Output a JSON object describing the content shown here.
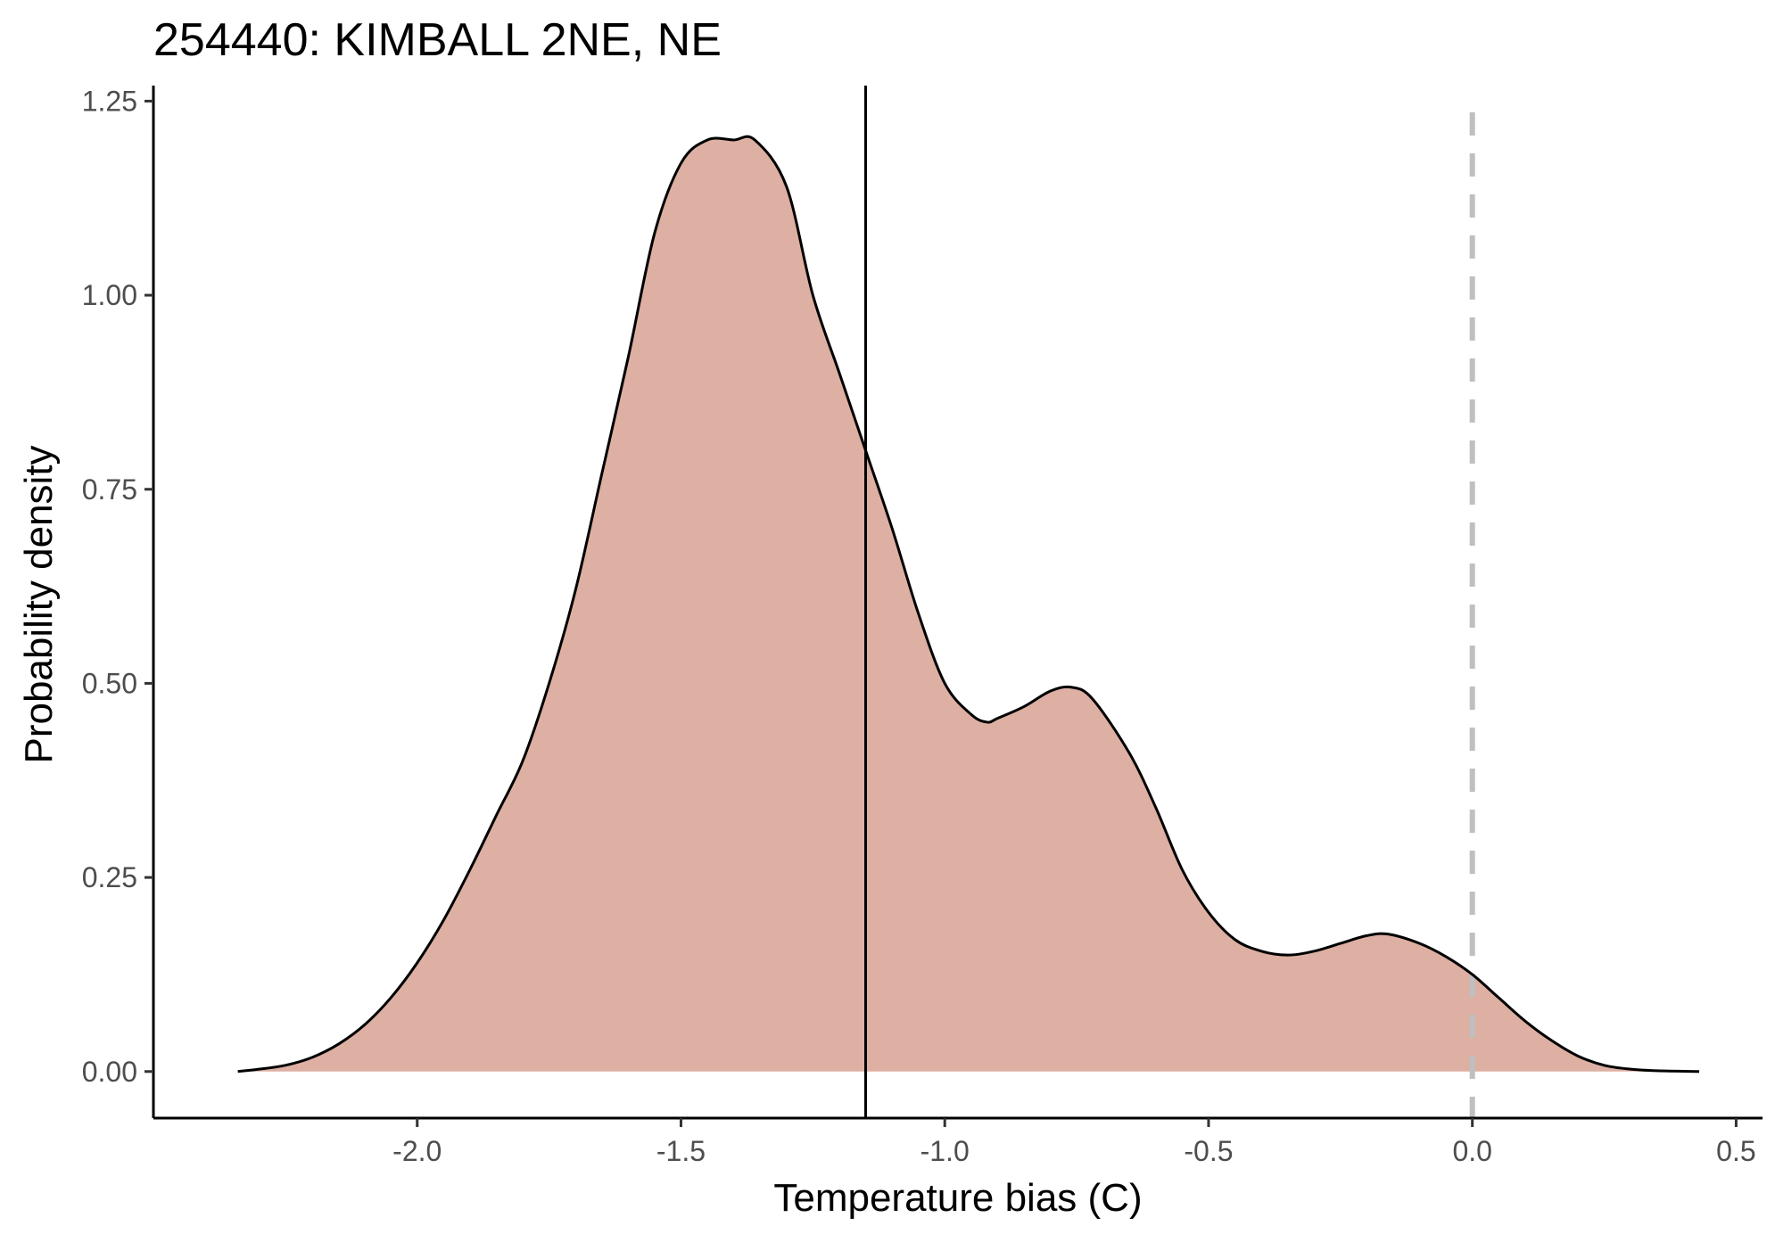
{
  "chart_data": {
    "type": "area",
    "title": "254440: KIMBALL 2NE, NE",
    "xlabel": "Temperature bias (C)",
    "ylabel": "Probability density",
    "xlim": [
      -2.5,
      0.55
    ],
    "ylim": [
      -0.06,
      1.27
    ],
    "x_ticks": [
      -2.0,
      -1.5,
      -1.0,
      -0.5,
      0.0,
      0.5
    ],
    "x_tick_labels": [
      "-2.0",
      "-1.5",
      "-1.0",
      "-0.5",
      "0.0",
      "0.5"
    ],
    "y_ticks": [
      0.0,
      0.25,
      0.5,
      0.75,
      1.0,
      1.25
    ],
    "y_tick_labels": [
      "0.00",
      "0.25",
      "0.50",
      "0.75",
      "1.00",
      "1.25"
    ],
    "grid": false,
    "fill_color": "#ddb0a3",
    "line_color": "#000000",
    "reference_lines": [
      {
        "x": -1.15,
        "style": "solid",
        "color": "#000000"
      },
      {
        "x": 0.0,
        "style": "dashed",
        "color": "#bfbfbf"
      }
    ],
    "series": [
      {
        "x": [
          -2.34,
          -2.3,
          -2.25,
          -2.2,
          -2.15,
          -2.1,
          -2.05,
          -2.0,
          -1.95,
          -1.9,
          -1.85,
          -1.8,
          -1.75,
          -1.7,
          -1.65,
          -1.6,
          -1.55,
          -1.5,
          -1.45,
          -1.4,
          -1.36,
          -1.3,
          -1.25,
          -1.2,
          -1.15,
          -1.1,
          -1.05,
          -1.0,
          -0.95,
          -0.92,
          -0.9,
          -0.85,
          -0.8,
          -0.76,
          -0.72,
          -0.65,
          -0.6,
          -0.55,
          -0.5,
          -0.45,
          -0.4,
          -0.35,
          -0.3,
          -0.25,
          -0.2,
          -0.16,
          -0.1,
          -0.05,
          0.0,
          0.05,
          0.1,
          0.15,
          0.2,
          0.25,
          0.3,
          0.35,
          0.43
        ],
        "y": [
          0.0,
          0.003,
          0.008,
          0.018,
          0.035,
          0.06,
          0.095,
          0.14,
          0.195,
          0.26,
          0.33,
          0.4,
          0.5,
          0.62,
          0.77,
          0.92,
          1.08,
          1.17,
          1.2,
          1.2,
          1.2,
          1.14,
          1.0,
          0.9,
          0.8,
          0.7,
          0.59,
          0.5,
          0.46,
          0.45,
          0.455,
          0.47,
          0.49,
          0.495,
          0.48,
          0.41,
          0.34,
          0.26,
          0.205,
          0.17,
          0.155,
          0.15,
          0.155,
          0.165,
          0.175,
          0.177,
          0.165,
          0.148,
          0.125,
          0.095,
          0.065,
          0.04,
          0.02,
          0.008,
          0.003,
          0.001,
          0.0
        ]
      }
    ]
  }
}
